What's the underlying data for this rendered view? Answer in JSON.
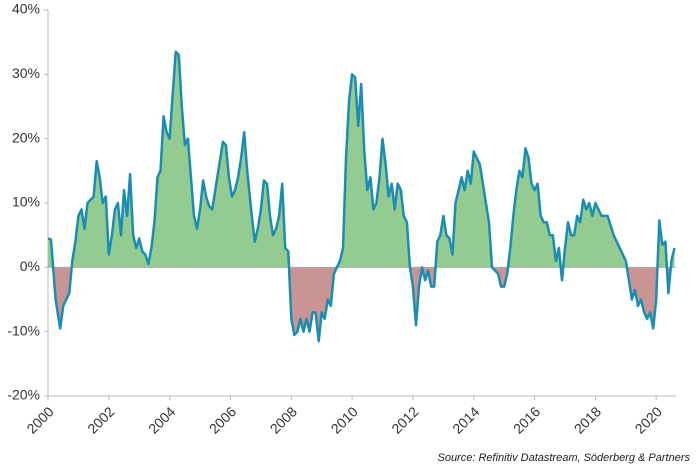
{
  "chart_data": {
    "type": "area",
    "x": [
      2000.0,
      2000.1,
      2000.25,
      2000.4,
      2000.5,
      2000.7,
      2000.8,
      2000.9,
      2001.0,
      2001.1,
      2001.2,
      2001.3,
      2001.5,
      2001.6,
      2001.7,
      2001.8,
      2001.9,
      2002.0,
      2002.1,
      2002.2,
      2002.3,
      2002.4,
      2002.5,
      2002.6,
      2002.7,
      2002.8,
      2002.9,
      2003.0,
      2003.1,
      2003.2,
      2003.3,
      2003.4,
      2003.5,
      2003.6,
      2003.7,
      2003.8,
      2003.9,
      2004.0,
      2004.2,
      2004.3,
      2004.4,
      2004.5,
      2004.6,
      2004.8,
      2004.9,
      2005.0,
      2005.1,
      2005.2,
      2005.3,
      2005.4,
      2005.5,
      2005.6,
      2005.75,
      2005.85,
      2005.95,
      2006.05,
      2006.15,
      2006.25,
      2006.35,
      2006.45,
      2006.55,
      2006.7,
      2006.8,
      2006.9,
      2007.0,
      2007.1,
      2007.2,
      2007.3,
      2007.4,
      2007.5,
      2007.6,
      2007.7,
      2007.8,
      2007.9,
      2008.0,
      2008.1,
      2008.2,
      2008.3,
      2008.4,
      2008.5,
      2008.6,
      2008.7,
      2008.8,
      2008.9,
      2009.0,
      2009.1,
      2009.2,
      2009.3,
      2009.4,
      2009.5,
      2009.6,
      2009.7,
      2009.8,
      2009.9,
      2010.0,
      2010.1,
      2010.2,
      2010.3,
      2010.4,
      2010.5,
      2010.6,
      2010.7,
      2010.8,
      2010.9,
      2011.0,
      2011.1,
      2011.2,
      2011.3,
      2011.4,
      2011.5,
      2011.6,
      2011.7,
      2011.8,
      2011.9,
      2012.0,
      2012.1,
      2012.2,
      2012.3,
      2012.4,
      2012.5,
      2012.6,
      2012.7,
      2012.8,
      2012.9,
      2013.0,
      2013.1,
      2013.2,
      2013.3,
      2013.4,
      2013.5,
      2013.6,
      2013.7,
      2013.8,
      2013.9,
      2014.0,
      2014.1,
      2014.2,
      2014.3,
      2014.4,
      2014.5,
      2014.6,
      2014.7,
      2014.8,
      2014.9,
      2015.0,
      2015.1,
      2015.2,
      2015.3,
      2015.4,
      2015.5,
      2015.6,
      2015.7,
      2015.8,
      2015.9,
      2016.0,
      2016.1,
      2016.2,
      2016.3,
      2016.4,
      2016.5,
      2016.6,
      2016.7,
      2016.8,
      2016.9,
      2017.0,
      2017.1,
      2017.2,
      2017.3,
      2017.4,
      2017.5,
      2017.6,
      2017.7,
      2017.8,
      2017.9,
      2018.0,
      2018.2,
      2018.4,
      2018.6,
      2018.8,
      2019.0,
      2019.1,
      2019.2,
      2019.3,
      2019.4,
      2019.5,
      2019.6,
      2019.7,
      2019.8,
      2019.9,
      2020.0,
      2020.1,
      2020.2,
      2020.3,
      2020.4,
      2020.5,
      2020.6
    ],
    "values": [
      4.5,
      4.3,
      -5,
      -9.5,
      -6,
      -4,
      1,
      4,
      8,
      9,
      6,
      10,
      11,
      16.5,
      14,
      10,
      11,
      2,
      5,
      9,
      10,
      5,
      12,
      8,
      14.5,
      5,
      3,
      4.5,
      2.5,
      2,
      0.5,
      3,
      7,
      14,
      15,
      23.5,
      21,
      20,
      33.5,
      33,
      25,
      19,
      20,
      8,
      6,
      9,
      13.5,
      11,
      9.5,
      9,
      12,
      15,
      19.5,
      19,
      14,
      11,
      12,
      14,
      17,
      21,
      15,
      8,
      4,
      6,
      9,
      13.5,
      13,
      8,
      5,
      6,
      8,
      13,
      3,
      2.5,
      -8,
      -10.5,
      -10,
      -8,
      -10,
      -8,
      -10,
      -7,
      -7,
      -11.5,
      -7,
      -8,
      -5,
      -6,
      -1,
      0,
      1,
      3,
      17,
      26,
      30,
      29.5,
      22,
      28.5,
      18,
      12,
      14,
      9,
      10,
      14,
      20,
      16,
      11,
      13,
      9,
      13,
      12,
      8,
      7,
      0,
      -3,
      -9,
      -3,
      0,
      -2,
      -0.5,
      -3,
      -3,
      4,
      5,
      8,
      5,
      4.5,
      2,
      10,
      12,
      14,
      12,
      15,
      13,
      18,
      17,
      16,
      13,
      10,
      7,
      0,
      -0.5,
      -1,
      -3,
      -3,
      -1,
      3,
      8,
      12,
      15,
      14,
      18.5,
      17,
      13,
      12,
      13,
      8,
      7,
      7,
      5,
      5,
      1,
      3,
      -2,
      3,
      7,
      5,
      5,
      8,
      7,
      10.5,
      9,
      10,
      8,
      10,
      8,
      8,
      5,
      3,
      1,
      -2,
      -5,
      -3.5,
      -6,
      -5,
      -7,
      -8,
      -7,
      -9.5,
      -5,
      7.3,
      3.5,
      4,
      -4,
      1,
      3
    ],
    "line_color": "#1b8db3",
    "positive_color": "#93cb91",
    "negative_color": "#c99594",
    "xlim": [
      2000,
      2020.65
    ],
    "xticks": [
      2000,
      2002,
      2004,
      2006,
      2008,
      2010,
      2012,
      2014,
      2016,
      2018,
      2020
    ],
    "ylim": [
      -20,
      40
    ],
    "yticks": [
      {
        "value": -20,
        "label": "-20%"
      },
      {
        "value": -10,
        "label": "-10%"
      },
      {
        "value": 0,
        "label": "0%"
      },
      {
        "value": 10,
        "label": "10%"
      },
      {
        "value": 20,
        "label": "20%"
      },
      {
        "value": 30,
        "label": "30%"
      },
      {
        "value": 40,
        "label": "40%"
      }
    ],
    "source": "Source: Refinitiv Datastream, Söderberg & Partners"
  }
}
